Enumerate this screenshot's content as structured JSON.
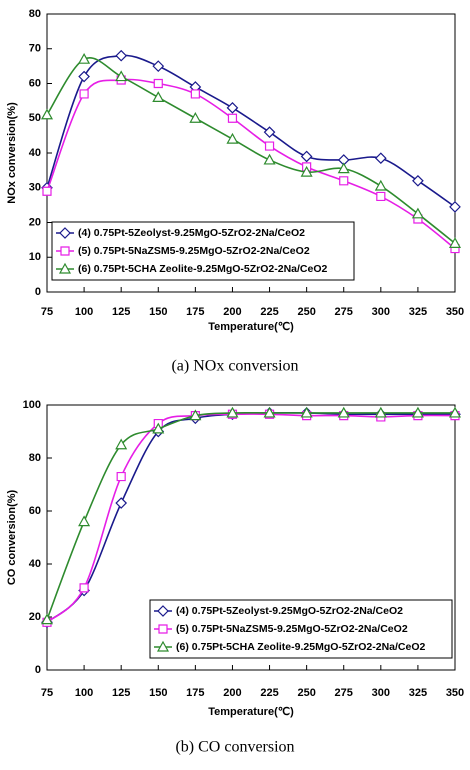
{
  "chart_data": [
    {
      "type": "line",
      "caption": "(a)  NOx  conversion",
      "xlabel": "Temperature(℃)",
      "ylabel": "NOx conversion(%)",
      "x": [
        75,
        100,
        125,
        150,
        175,
        200,
        225,
        250,
        275,
        300,
        325,
        350
      ],
      "xlim": [
        75,
        350
      ],
      "xticks": [
        75,
        100,
        125,
        150,
        175,
        200,
        225,
        250,
        275,
        300,
        325,
        350
      ],
      "ylim": [
        0,
        80
      ],
      "yticks": [
        0,
        10,
        20,
        30,
        40,
        50,
        60,
        70,
        80
      ],
      "legend": "lower left",
      "series": [
        {
          "name": "(4) 0.75Pt-5Zeolyst-9.25MgO-5ZrO2-2Na/CeO2",
          "color": "#1a1a8c",
          "marker": "diamond",
          "values": [
            30,
            62,
            68,
            65,
            59,
            53,
            46,
            39,
            38,
            38.5,
            32,
            24.5
          ]
        },
        {
          "name": "(5) 0.75Pt-5NaZSM5-9.25MgO-5ZrO2-2Na/CeO2",
          "color": "#e61ee6",
          "marker": "square",
          "values": [
            29,
            57,
            61,
            60,
            57,
            50,
            42,
            36,
            32,
            27.5,
            21,
            12.5
          ]
        },
        {
          "name": "(6) 0.75Pt-5CHA Zeolite-9.25MgO-5ZrO2-2Na/CeO2",
          "color": "#2e8b2e",
          "marker": "triangle",
          "values": [
            51,
            67,
            62,
            56,
            50,
            44,
            38,
            34.5,
            35.5,
            30.5,
            22.5,
            14
          ]
        }
      ]
    },
    {
      "type": "line",
      "caption": "(b)  CO  conversion",
      "xlabel": "Temperature(℃)",
      "ylabel": "CO conversion(%)",
      "x": [
        75,
        100,
        125,
        150,
        175,
        200,
        225,
        250,
        275,
        300,
        325,
        350
      ],
      "xlim": [
        75,
        350
      ],
      "xticks": [
        75,
        100,
        125,
        150,
        175,
        200,
        225,
        250,
        275,
        300,
        325,
        350
      ],
      "ylim": [
        0,
        100
      ],
      "yticks": [
        0,
        20,
        40,
        60,
        80,
        100
      ],
      "legend": "lower right",
      "series": [
        {
          "name": "(4) 0.75Pt-5Zeolyst-9.25MgO-5ZrO2-2Na/CeO2",
          "color": "#1a1a8c",
          "marker": "diamond",
          "values": [
            18,
            30,
            63,
            90,
            95,
            96.5,
            97,
            97,
            96.5,
            96.5,
            96.5,
            96.5
          ]
        },
        {
          "name": "(5) 0.75Pt-5NaZSM5-9.25MgO-5ZrO2-2Na/CeO2",
          "color": "#e61ee6",
          "marker": "square",
          "values": [
            18,
            31,
            73,
            93,
            96,
            96.5,
            96.5,
            96,
            96,
            95.5,
            96,
            96
          ]
        },
        {
          "name": "(6) 0.75Pt-5CHA Zeolite-9.25MgO-5ZrO2-2Na/CeO2",
          "color": "#2e8b2e",
          "marker": "triangle",
          "values": [
            19,
            56,
            85,
            91,
            96,
            97,
            97,
            97,
            97,
            97,
            97,
            97
          ]
        }
      ]
    }
  ]
}
